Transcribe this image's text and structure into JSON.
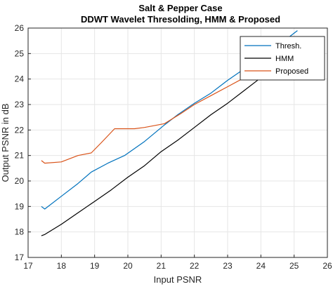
{
  "chart_data": {
    "type": "line",
    "title": "Salt & Pepper Case",
    "subtitle": "DDWT Wavelet Thresolding, HMM & Proposed",
    "xlabel": "Input PSNR",
    "ylabel": "Output PSNR in dB",
    "xlim": [
      17,
      26
    ],
    "ylim": [
      17,
      26
    ],
    "xticks": [
      "17",
      "18",
      "19",
      "20",
      "21",
      "22",
      "23",
      "24",
      "25",
      "26"
    ],
    "yticks": [
      "17",
      "18",
      "19",
      "20",
      "21",
      "22",
      "23",
      "24",
      "25",
      "26"
    ],
    "grid": true,
    "legend_position": "top-right",
    "series": [
      {
        "name": "Thresh.",
        "color": "#0072BD",
        "points": [
          [
            17.4,
            19.0
          ],
          [
            17.5,
            18.9
          ],
          [
            18.0,
            19.4
          ],
          [
            18.5,
            19.9
          ],
          [
            18.9,
            20.35
          ],
          [
            19.4,
            20.7
          ],
          [
            19.9,
            21.0
          ],
          [
            20.5,
            21.55
          ],
          [
            21.1,
            22.2
          ],
          [
            21.5,
            22.6
          ],
          [
            22.0,
            23.05
          ],
          [
            22.5,
            23.45
          ],
          [
            23.0,
            23.95
          ],
          [
            23.5,
            24.4
          ],
          [
            24.0,
            24.8
          ],
          [
            24.5,
            25.3
          ],
          [
            25.1,
            25.9
          ]
        ]
      },
      {
        "name": "HMM",
        "color": "#000000",
        "points": [
          [
            17.4,
            17.85
          ],
          [
            17.5,
            17.9
          ],
          [
            18.0,
            18.3
          ],
          [
            18.5,
            18.75
          ],
          [
            19.0,
            19.2
          ],
          [
            19.5,
            19.65
          ],
          [
            20.0,
            20.15
          ],
          [
            20.5,
            20.6
          ],
          [
            21.0,
            21.15
          ],
          [
            21.5,
            21.6
          ],
          [
            22.0,
            22.1
          ],
          [
            22.5,
            22.6
          ],
          [
            23.0,
            23.05
          ],
          [
            23.5,
            23.55
          ],
          [
            24.0,
            24.05
          ],
          [
            24.5,
            24.55
          ],
          [
            25.1,
            25.1
          ]
        ]
      },
      {
        "name": "Proposed",
        "color": "#D95319",
        "points": [
          [
            17.4,
            20.8
          ],
          [
            17.5,
            20.7
          ],
          [
            18.0,
            20.75
          ],
          [
            18.5,
            21.0
          ],
          [
            18.9,
            21.1
          ],
          [
            19.2,
            21.5
          ],
          [
            19.6,
            22.05
          ],
          [
            19.8,
            22.05
          ],
          [
            20.2,
            22.05
          ],
          [
            20.5,
            22.1
          ],
          [
            21.1,
            22.25
          ],
          [
            21.6,
            22.65
          ],
          [
            22.0,
            23.0
          ],
          [
            22.5,
            23.35
          ],
          [
            23.0,
            23.7
          ],
          [
            23.5,
            24.05
          ],
          [
            24.0,
            24.4
          ],
          [
            24.5,
            24.75
          ],
          [
            24.7,
            24.85
          ]
        ]
      }
    ]
  }
}
